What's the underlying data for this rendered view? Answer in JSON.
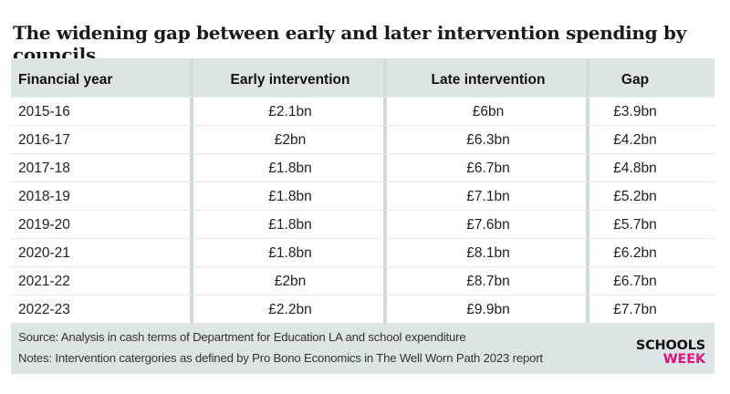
{
  "title": "The widening gap between early and later intervention spending by councils",
  "chart_data": {
    "type": "table",
    "columns": [
      "Financial year",
      "Early intervention",
      "Late intervention",
      "Gap"
    ],
    "rows": [
      [
        "2015-16",
        "£2.1bn",
        "£6bn",
        "£3.9bn"
      ],
      [
        "2016-17",
        "£2bn",
        "£6.3bn",
        "£4.2bn"
      ],
      [
        "2017-18",
        "£1.8bn",
        "£6.7bn",
        "£4.8bn"
      ],
      [
        "2018-19",
        "£1.8bn",
        "£7.1bn",
        "£5.2bn"
      ],
      [
        "2019-20",
        "£1.8bn",
        "£7.6bn",
        "£5.7bn"
      ],
      [
        "2020-21",
        "£1.8bn",
        "£8.1bn",
        "£6.2bn"
      ],
      [
        "2021-22",
        "£2bn",
        "£8.7bn",
        "£6.7bn"
      ],
      [
        "2022-23",
        "£2.2bn",
        "£9.9bn",
        "£7.7bn"
      ]
    ]
  },
  "footer": {
    "source": "Source: Analysis in cash terms of Department for Education LA and school expenditure",
    "notes": "Notes: Intervention catergories as defined by Pro Bono Economics in The Well Worn Path 2023 report"
  },
  "logo": {
    "line1": "SCHOOLS",
    "line2": "WEEK"
  },
  "colors": {
    "header_bg": "#dde4e7",
    "footer_bg": "#dde4e7",
    "logo_accent": "#e5127d"
  }
}
